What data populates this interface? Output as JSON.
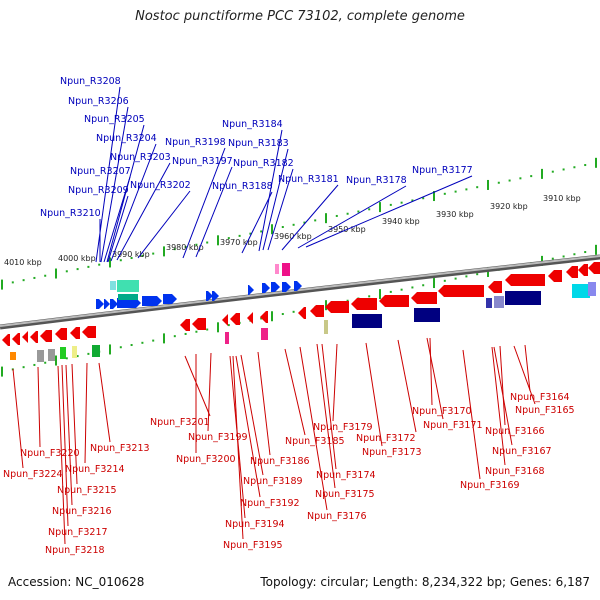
{
  "title": "Nostoc punctiforme PCC 73102, complete genome",
  "footer": {
    "accession": "Accession: NC_010628",
    "summary": "Topology: circular; Length: 8,234,322 bp; Genes: 6,187"
  },
  "colors": {
    "forward_gene": "#0033ee",
    "reverse_gene": "#ee0000",
    "forward_label": "#0000bb",
    "reverse_label": "#cc0000",
    "backbone": "#888888",
    "tick": "#22aa22",
    "dark_feature": "#000080"
  },
  "scale_labels": [
    "4010 kbp",
    "4000 kbp",
    "3990 kbp",
    "3980 kbp",
    "3970 kbp",
    "3960 kbp",
    "3950 kbp",
    "3940 kbp",
    "3930 kbp",
    "3920 kbp",
    "3910 kbp"
  ],
  "forward_labels": [
    "Npun_R3208",
    "Npun_R3206",
    "Npun_R3205",
    "Npun_R3204",
    "Npun_R3203",
    "Npun_R3207",
    "Npun_R3209",
    "Npun_R3210",
    "Npun_R3202",
    "Npun_R3198",
    "Npun_R3197",
    "Npun_R3184",
    "Npun_R3183",
    "Npun_R3182",
    "Npun_R3188",
    "Npun_R3181",
    "Npun_R3178",
    "Npun_R3177"
  ],
  "reverse_labels": [
    "Npun_F3164",
    "Npun_F3165",
    "Npun_F3166",
    "Npun_F3167",
    "Npun_F3168",
    "Npun_F3169",
    "Npun_F3170",
    "Npun_F3171",
    "Npun_F3172",
    "Npun_F3173",
    "Npun_F3174",
    "Npun_F3175",
    "Npun_F3176",
    "Npun_F3179",
    "Npun_F3185",
    "Npun_F3186",
    "Npun_F3189",
    "Npun_F3192",
    "Npun_F3194",
    "Npun_F3195",
    "Npun_F3199",
    "Npun_F3200",
    "Npun_F3201",
    "Npun_F3213",
    "Npun_F3214",
    "Npun_F3215",
    "Npun_F3216",
    "Npun_F3217",
    "Npun_F3218",
    "Npun_F3220",
    "Npun_F3224"
  ]
}
